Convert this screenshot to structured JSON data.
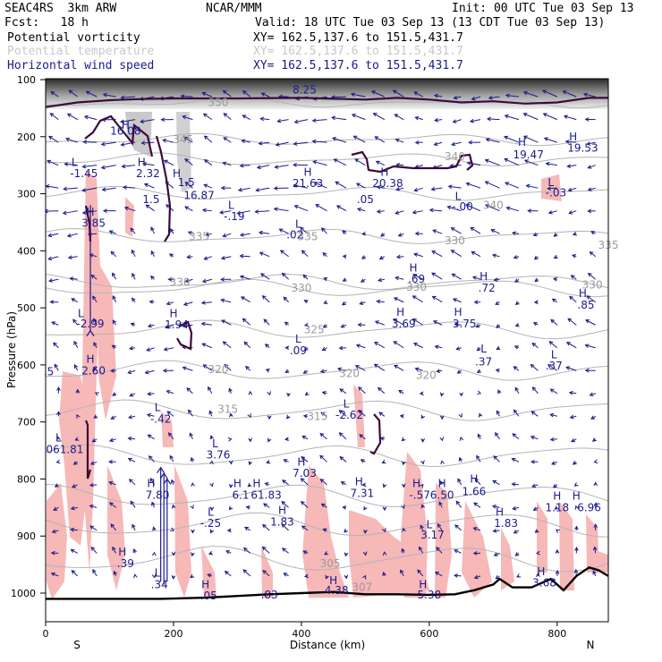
{
  "header": {
    "model": "SEAC4RS  3km ARW",
    "org": "NCAR/MMM",
    "init": "Init: 00 UTC Tue 03 Sep 13",
    "fcst": "Fcst:   18 h",
    "valid": "Valid: 18 UTC Tue 03 Sep 13 (13 CDT Tue 03 Sep 13)"
  },
  "legend": [
    {
      "name": "Potential vorticity",
      "xy": "XY= 162.5,137.6 to 151.5,431.7",
      "color": "#000000"
    },
    {
      "name": "Potential temperature",
      "xy": "XY= 162.5,137.6 to 151.5,431.7",
      "color": "#c8c8c8"
    },
    {
      "name": "Horizontal wind speed",
      "xy": "XY= 162.5,137.6 to 151.5,431.7",
      "color": "#1a1a8c"
    }
  ],
  "chart_data": {
    "type": "cross-section",
    "xlabel": "Distance (km)",
    "ylabel": "Pressure (hPa)",
    "xlim": [
      0,
      880
    ],
    "ylim": [
      1050,
      100
    ],
    "x_ticks": [
      "0",
      "200",
      "400",
      "600",
      "800"
    ],
    "y_ticks": [
      "100",
      "200",
      "300",
      "400",
      "500",
      "600",
      "700",
      "800",
      "900",
      "1000"
    ],
    "x_end_labels": {
      "left": "S",
      "right": "N"
    },
    "colors": {
      "pv_fill": "#f7b8b8",
      "pv_line": "#3b0a3b",
      "theta": "#b4b4b4",
      "wind": "#1a1a8c",
      "terrain": "#000000"
    },
    "theta_labels": [
      {
        "x": 270,
        "p": 140,
        "text": "350"
      },
      {
        "x": 215,
        "p": 205,
        "text": "345"
      },
      {
        "x": 240,
        "p": 375,
        "text": "335"
      },
      {
        "x": 410,
        "p": 375,
        "text": "335"
      },
      {
        "x": 640,
        "p": 382,
        "text": "330"
      },
      {
        "x": 210,
        "p": 455,
        "text": "330"
      },
      {
        "x": 400,
        "p": 465,
        "text": "330"
      },
      {
        "x": 580,
        "p": 464,
        "text": "330"
      },
      {
        "x": 420,
        "p": 538,
        "text": "325"
      },
      {
        "x": 270,
        "p": 608,
        "text": "320"
      },
      {
        "x": 475,
        "p": 615,
        "text": "320"
      },
      {
        "x": 595,
        "p": 618,
        "text": "320"
      },
      {
        "x": 285,
        "p": 678,
        "text": "315"
      },
      {
        "x": 425,
        "p": 690,
        "text": "315"
      },
      {
        "x": 445,
        "p": 948,
        "text": "305"
      },
      {
        "x": 495,
        "p": 990,
        "text": "307"
      },
      {
        "x": 640,
        "p": 235,
        "text": "340"
      },
      {
        "x": 700,
        "p": 320,
        "text": "340"
      },
      {
        "x": 880,
        "p": 390,
        "text": "335"
      },
      {
        "x": 855,
        "p": 460,
        "text": "330"
      }
    ],
    "wind_labels": [
      {
        "x": 405,
        "p": 118,
        "text": "8.25"
      },
      {
        "x": 125,
        "p": 180,
        "kind": "H"
      },
      {
        "x": 125,
        "p": 190,
        "text": "16.08"
      },
      {
        "x": 45,
        "p": 245,
        "kind": "L"
      },
      {
        "x": 60,
        "p": 265,
        "text": "-1.45"
      },
      {
        "x": 150,
        "p": 245,
        "kind": "H"
      },
      {
        "x": 160,
        "p": 265,
        "text": "2.32"
      },
      {
        "x": 205,
        "p": 265,
        "kind": "H"
      },
      {
        "x": 220,
        "p": 280,
        "text": "1.5"
      },
      {
        "x": 165,
        "p": 310,
        "text": "1.5"
      },
      {
        "x": 240,
        "p": 303,
        "text": "16.87"
      },
      {
        "x": 290,
        "p": 320,
        "kind": "L"
      },
      {
        "x": 295,
        "p": 340,
        "text": "-.19"
      },
      {
        "x": 410,
        "p": 262,
        "kind": "H"
      },
      {
        "x": 410,
        "p": 282,
        "text": "21.63"
      },
      {
        "x": 530,
        "p": 262,
        "kind": "H"
      },
      {
        "x": 535,
        "p": 282,
        "text": "20.38"
      },
      {
        "x": 500,
        "p": 310,
        "text": ".05"
      },
      {
        "x": 645,
        "p": 305,
        "kind": "L"
      },
      {
        "x": 652,
        "p": 323,
        "text": "-.00"
      },
      {
        "x": 745,
        "p": 210,
        "kind": "H"
      },
      {
        "x": 755,
        "p": 232,
        "text": "19.47"
      },
      {
        "x": 825,
        "p": 200,
        "kind": "H"
      },
      {
        "x": 840,
        "p": 220,
        "text": "19.53"
      },
      {
        "x": 790,
        "p": 280,
        "kind": "L"
      },
      {
        "x": 798,
        "p": 298,
        "text": "-.03"
      },
      {
        "x": 395,
        "p": 353,
        "kind": "L"
      },
      {
        "x": 390,
        "p": 372,
        "text": ".02"
      },
      {
        "x": 70,
        "p": 332,
        "kind": "H"
      },
      {
        "x": 75,
        "p": 352,
        "text": "3.85"
      },
      {
        "x": 575,
        "p": 430,
        "kind": "H"
      },
      {
        "x": 580,
        "p": 450,
        "text": ".69"
      },
      {
        "x": 685,
        "p": 445,
        "kind": "H"
      },
      {
        "x": 690,
        "p": 465,
        "text": ".72"
      },
      {
        "x": 840,
        "p": 475,
        "kind": "H"
      },
      {
        "x": 845,
        "p": 495,
        "text": ".85"
      },
      {
        "x": 55,
        "p": 510,
        "kind": "L"
      },
      {
        "x": 70,
        "p": 528,
        "text": "-2.99"
      },
      {
        "x": 200,
        "p": 510,
        "kind": "H"
      },
      {
        "x": 205,
        "p": 530,
        "text": "1.94"
      },
      {
        "x": 555,
        "p": 508,
        "kind": "H"
      },
      {
        "x": 560,
        "p": 528,
        "text": "3.69"
      },
      {
        "x": 645,
        "p": 508,
        "kind": "H"
      },
      {
        "x": 655,
        "p": 528,
        "text": "3.75"
      },
      {
        "x": 395,
        "p": 555,
        "kind": "L"
      },
      {
        "x": 395,
        "p": 575,
        "text": ".09"
      },
      {
        "x": 685,
        "p": 572,
        "kind": "L"
      },
      {
        "x": 685,
        "p": 595,
        "text": ".37"
      },
      {
        "x": 795,
        "p": 582,
        "kind": "L"
      },
      {
        "x": 795,
        "p": 602,
        "text": ".37"
      },
      {
        "x": 5,
        "p": 612,
        "text": ".5"
      },
      {
        "x": 70,
        "p": 590,
        "kind": "H"
      },
      {
        "x": 75,
        "p": 610,
        "text": "2.60"
      },
      {
        "x": 175,
        "p": 675,
        "kind": "L"
      },
      {
        "x": 180,
        "p": 695,
        "text": "-.42"
      },
      {
        "x": 470,
        "p": 668,
        "kind": "L"
      },
      {
        "x": 475,
        "p": 688,
        "text": "-2.62"
      },
      {
        "x": 20,
        "p": 728,
        "kind": "L"
      },
      {
        "x": 30,
        "p": 748,
        "text": "061.81"
      },
      {
        "x": 265,
        "p": 738,
        "kind": "L"
      },
      {
        "x": 270,
        "p": 758,
        "text": "3.76"
      },
      {
        "x": 400,
        "p": 770,
        "kind": "H"
      },
      {
        "x": 405,
        "p": 790,
        "text": "7.03"
      },
      {
        "x": 165,
        "p": 808,
        "kind": "H"
      },
      {
        "x": 175,
        "p": 828,
        "text": "7.80"
      },
      {
        "x": 300,
        "p": 808,
        "kind": "H"
      },
      {
        "x": 305,
        "p": 828,
        "text": "6.1"
      },
      {
        "x": 330,
        "p": 808,
        "kind": "H"
      },
      {
        "x": 345,
        "p": 828,
        "text": "61.83"
      },
      {
        "x": 490,
        "p": 805,
        "kind": "H"
      },
      {
        "x": 495,
        "p": 825,
        "text": "7.31"
      },
      {
        "x": 580,
        "p": 808,
        "kind": "H"
      },
      {
        "x": 585,
        "p": 828,
        "text": "-.57"
      },
      {
        "x": 620,
        "p": 808,
        "kind": "H"
      },
      {
        "x": 620,
        "p": 828,
        "text": "6.50"
      },
      {
        "x": 670,
        "p": 800,
        "kind": "H"
      },
      {
        "x": 670,
        "p": 822,
        "text": "1.66"
      },
      {
        "x": 258,
        "p": 858,
        "kind": "L"
      },
      {
        "x": 258,
        "p": 878,
        "text": "-.25"
      },
      {
        "x": 370,
        "p": 855,
        "kind": "H"
      },
      {
        "x": 370,
        "p": 875,
        "text": "1.83"
      },
      {
        "x": 600,
        "p": 880,
        "kind": "L"
      },
      {
        "x": 605,
        "p": 898,
        "text": "3.17"
      },
      {
        "x": 710,
        "p": 858,
        "kind": "H"
      },
      {
        "x": 720,
        "p": 878,
        "text": "1.83"
      },
      {
        "x": 800,
        "p": 830,
        "kind": "H"
      },
      {
        "x": 800,
        "p": 850,
        "text": "1.18"
      },
      {
        "x": 830,
        "p": 830,
        "kind": "H"
      },
      {
        "x": 850,
        "p": 850,
        "text": "6.96"
      },
      {
        "x": 120,
        "p": 928,
        "kind": "H"
      },
      {
        "x": 125,
        "p": 948,
        "text": ".39"
      },
      {
        "x": 175,
        "p": 965,
        "kind": "L"
      },
      {
        "x": 178,
        "p": 985,
        "text": ".34"
      },
      {
        "x": 250,
        "p": 985,
        "kind": "H"
      },
      {
        "x": 255,
        "p": 1005,
        "text": ".05"
      },
      {
        "x": 350,
        "p": 1003,
        "text": ".83"
      },
      {
        "x": 450,
        "p": 978,
        "kind": "H"
      },
      {
        "x": 455,
        "p": 995,
        "text": "4.38"
      },
      {
        "x": 590,
        "p": 985,
        "kind": "H"
      },
      {
        "x": 600,
        "p": 1003,
        "text": "5.38"
      },
      {
        "x": 775,
        "p": 962,
        "kind": "H"
      },
      {
        "x": 780,
        "p": 982,
        "text": "3.68"
      }
    ],
    "terrain": [
      [
        0,
        1010
      ],
      [
        180,
        1010
      ],
      [
        250,
        1008
      ],
      [
        300,
        1005
      ],
      [
        350,
        1002
      ],
      [
        400,
        1000
      ],
      [
        450,
        998
      ],
      [
        500,
        1002
      ],
      [
        550,
        1002
      ],
      [
        600,
        1003
      ],
      [
        640,
        1002
      ],
      [
        670,
        995
      ],
      [
        700,
        985
      ],
      [
        710,
        975
      ],
      [
        730,
        990
      ],
      [
        760,
        990
      ],
      [
        790,
        975
      ],
      [
        810,
        995
      ],
      [
        830,
        970
      ],
      [
        850,
        955
      ],
      [
        865,
        960
      ],
      [
        880,
        970
      ]
    ],
    "pv_line_top": [
      [
        0,
        148
      ],
      [
        50,
        140
      ],
      [
        100,
        136
      ],
      [
        150,
        134
      ],
      [
        200,
        133
      ],
      [
        300,
        133
      ],
      [
        400,
        132
      ],
      [
        500,
        135
      ],
      [
        550,
        132
      ],
      [
        600,
        135
      ],
      [
        650,
        140
      ],
      [
        700,
        138
      ],
      [
        750,
        142
      ],
      [
        800,
        140
      ],
      [
        850,
        132
      ],
      [
        880,
        132
      ]
    ]
  }
}
